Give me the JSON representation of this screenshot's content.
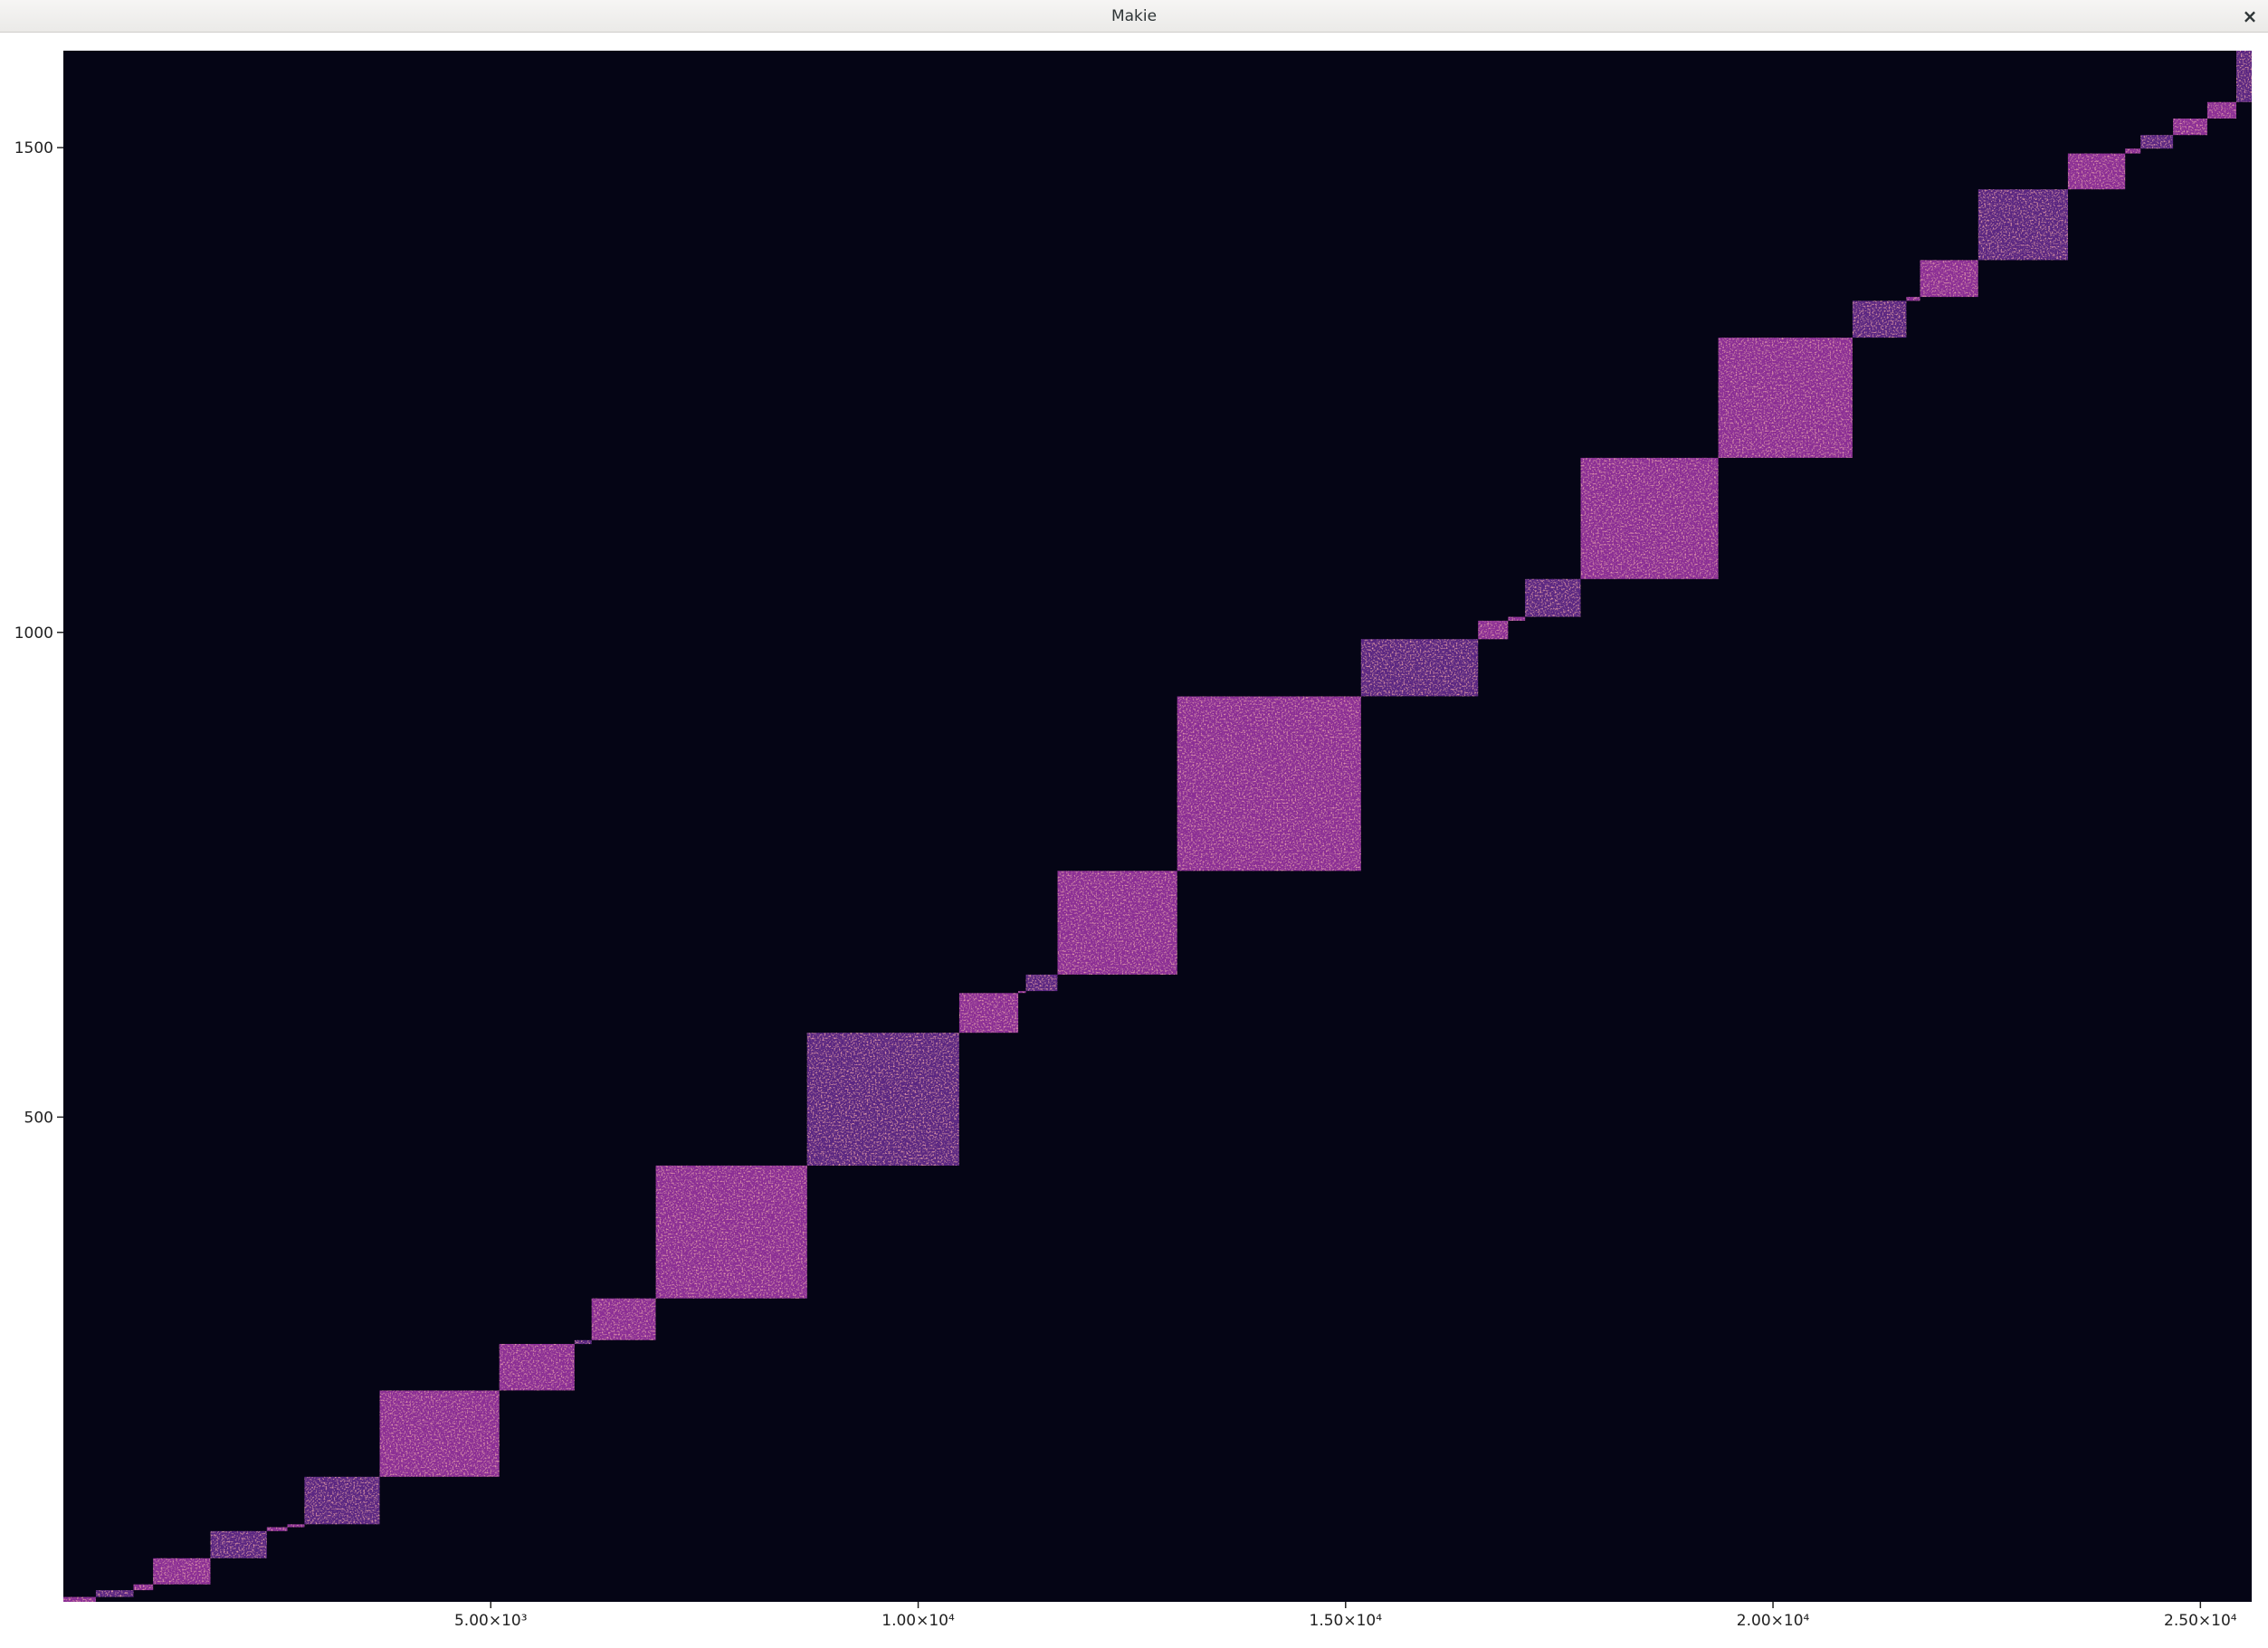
{
  "window": {
    "title": "Makie",
    "close_glyph": "×"
  },
  "colors": {
    "background": "#050515",
    "block_dark": "#5a2582",
    "block_mid": "#8b2f95",
    "block_bright": "#d64a86",
    "block_hot": "#f57a5f"
  },
  "chart_data": {
    "type": "heatmap",
    "title": "",
    "xlabel": "",
    "ylabel": "",
    "xlim": [
      0,
      25600
    ],
    "ylim": [
      0,
      1600
    ],
    "x_ticks": [
      {
        "value": 5000,
        "label": "5.00×10³"
      },
      {
        "value": 10000,
        "label": "1.00×10⁴"
      },
      {
        "value": 15000,
        "label": "1.50×10⁴"
      },
      {
        "value": 20000,
        "label": "2.00×10⁴"
      },
      {
        "value": 25000,
        "label": "2.50×10⁴"
      }
    ],
    "y_ticks": [
      {
        "value": 500,
        "label": "500"
      },
      {
        "value": 1000,
        "label": "1000"
      },
      {
        "value": 1500,
        "label": "1500"
      }
    ],
    "grid": false,
    "legend": "none",
    "blocks": [
      {
        "x0": 0,
        "x1": 380,
        "y0": 0,
        "y1": 5
      },
      {
        "x0": 380,
        "x1": 820,
        "y0": 5,
        "y1": 12
      },
      {
        "x0": 820,
        "x1": 1050,
        "y0": 12,
        "y1": 18
      },
      {
        "x0": 1050,
        "x1": 1720,
        "y0": 18,
        "y1": 45
      },
      {
        "x0": 1720,
        "x1": 2380,
        "y0": 45,
        "y1": 73
      },
      {
        "x0": 2380,
        "x1": 2620,
        "y0": 73,
        "y1": 77
      },
      {
        "x0": 2620,
        "x1": 2820,
        "y0": 77,
        "y1": 80
      },
      {
        "x0": 2820,
        "x1": 3700,
        "y0": 80,
        "y1": 129
      },
      {
        "x0": 3700,
        "x1": 5100,
        "y0": 129,
        "y1": 218
      },
      {
        "x0": 5100,
        "x1": 5980,
        "y0": 218,
        "y1": 266
      },
      {
        "x0": 5980,
        "x1": 6180,
        "y0": 266,
        "y1": 270
      },
      {
        "x0": 6180,
        "x1": 6930,
        "y0": 270,
        "y1": 313
      },
      {
        "x0": 6930,
        "x1": 8700,
        "y0": 313,
        "y1": 450
      },
      {
        "x0": 8700,
        "x1": 10480,
        "y0": 450,
        "y1": 587
      },
      {
        "x0": 10480,
        "x1": 11170,
        "y0": 587,
        "y1": 628
      },
      {
        "x0": 11170,
        "x1": 11260,
        "y0": 628,
        "y1": 630
      },
      {
        "x0": 11260,
        "x1": 11630,
        "y0": 630,
        "y1": 647
      },
      {
        "x0": 11630,
        "x1": 13030,
        "y0": 647,
        "y1": 754
      },
      {
        "x0": 13030,
        "x1": 15180,
        "y0": 754,
        "y1": 934
      },
      {
        "x0": 15180,
        "x1": 16550,
        "y0": 934,
        "y1": 993
      },
      {
        "x0": 16550,
        "x1": 16900,
        "y0": 993,
        "y1": 1012
      },
      {
        "x0": 16900,
        "x1": 17100,
        "y0": 1012,
        "y1": 1016
      },
      {
        "x0": 17100,
        "x1": 17750,
        "y0": 1016,
        "y1": 1055
      },
      {
        "x0": 17750,
        "x1": 19360,
        "y0": 1055,
        "y1": 1180
      },
      {
        "x0": 19360,
        "x1": 20930,
        "y0": 1180,
        "y1": 1304
      },
      {
        "x0": 20930,
        "x1": 21560,
        "y0": 1304,
        "y1": 1342
      },
      {
        "x0": 21560,
        "x1": 21720,
        "y0": 1342,
        "y1": 1346
      },
      {
        "x0": 21720,
        "x1": 22400,
        "y0": 1346,
        "y1": 1384
      },
      {
        "x0": 22400,
        "x1": 23450,
        "y0": 1384,
        "y1": 1457
      },
      {
        "x0": 23450,
        "x1": 24120,
        "y0": 1457,
        "y1": 1494
      },
      {
        "x0": 24120,
        "x1": 24300,
        "y0": 1494,
        "y1": 1499
      },
      {
        "x0": 24300,
        "x1": 24680,
        "y0": 1499,
        "y1": 1513
      },
      {
        "x0": 24680,
        "x1": 25080,
        "y0": 1513,
        "y1": 1530
      },
      {
        "x0": 25080,
        "x1": 25420,
        "y0": 1530,
        "y1": 1547
      },
      {
        "x0": 25420,
        "x1": 25600,
        "y0": 1547,
        "y1": 1600
      }
    ]
  }
}
